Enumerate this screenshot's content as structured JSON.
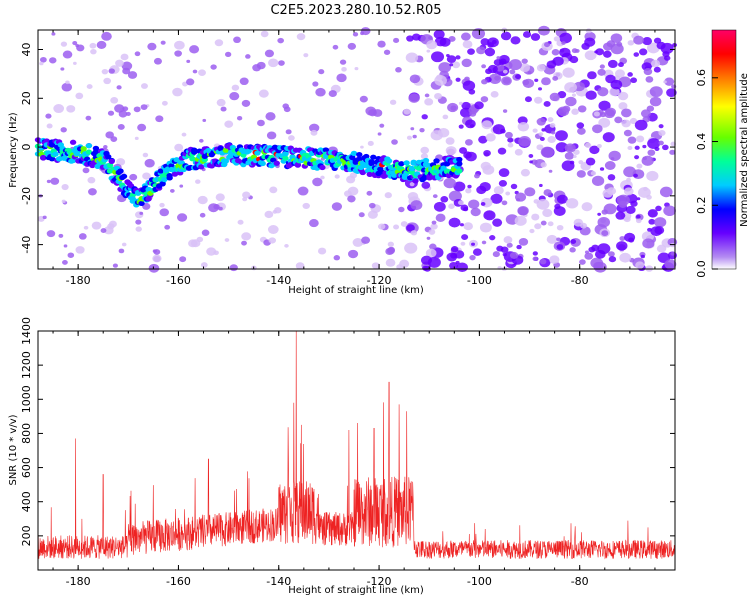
{
  "page_title": "C2E5.2023.280.10.52.R05",
  "colors": {
    "axis": "#000000",
    "snr_line": "#ee2222",
    "colormap": [
      "#ffffff",
      "#d9c2f7",
      "#9c5ef0",
      "#6600ff",
      "#0000ff",
      "#00ccff",
      "#00ff99",
      "#66ff00",
      "#ffff00",
      "#ff7700",
      "#ff0000",
      "#ff0066"
    ]
  },
  "chart_data": [
    {
      "type": "heatmap",
      "xlabel": "Height of straight line (km)",
      "ylabel": "Frequency (Hz)",
      "xlim": [
        -188,
        -61
      ],
      "ylim": [
        -50,
        48
      ],
      "xticks": [
        -180,
        -160,
        -140,
        -120,
        -100,
        -80
      ],
      "yticks": [
        -40,
        -20,
        0,
        20,
        40
      ],
      "colorbar": {
        "label": "Normalized spectral amplitude",
        "range": [
          0,
          0.75
        ],
        "ticks": [
          0.0,
          0.2,
          0.4,
          0.6
        ]
      },
      "signal_band": [
        {
          "x": -188,
          "f": -1
        },
        {
          "x": -180,
          "f": -2
        },
        {
          "x": -175,
          "f": -5
        },
        {
          "x": -168,
          "f": -22
        },
        {
          "x": -163,
          "f": -12
        },
        {
          "x": -158,
          "f": -5
        },
        {
          "x": -150,
          "f": -3
        },
        {
          "x": -140,
          "f": -4
        },
        {
          "x": -130,
          "f": -5
        },
        {
          "x": -120,
          "f": -8
        },
        {
          "x": -113,
          "f": -10
        },
        {
          "x": -105,
          "f": -8
        }
      ],
      "noise_cutoff_x": -114
    },
    {
      "type": "line",
      "xlabel": "Height of straight line (km)",
      "ylabel": "SNR (10 * v/v)",
      "xlim": [
        -188,
        -61
      ],
      "ylim": [
        0,
        1400
      ],
      "xticks": [
        -180,
        -160,
        -140,
        -120,
        -100,
        -80
      ],
      "yticks": [
        200,
        400,
        600,
        800,
        1000,
        1200,
        1400
      ],
      "peaks": [
        {
          "x": -136.5,
          "y": 1400
        },
        {
          "x": -137,
          "y": 980
        },
        {
          "x": -135.5,
          "y": 850
        },
        {
          "x": -118,
          "y": 1100
        },
        {
          "x": -116,
          "y": 970
        },
        {
          "x": -114.5,
          "y": 930
        },
        {
          "x": -180.5,
          "y": 770
        },
        {
          "x": -121,
          "y": 830
        },
        {
          "x": -126,
          "y": 820
        },
        {
          "x": -175,
          "y": 560
        },
        {
          "x": -154,
          "y": 650
        },
        {
          "x": -154,
          "y": 650
        }
      ],
      "drop_x": -112.5
    }
  ]
}
